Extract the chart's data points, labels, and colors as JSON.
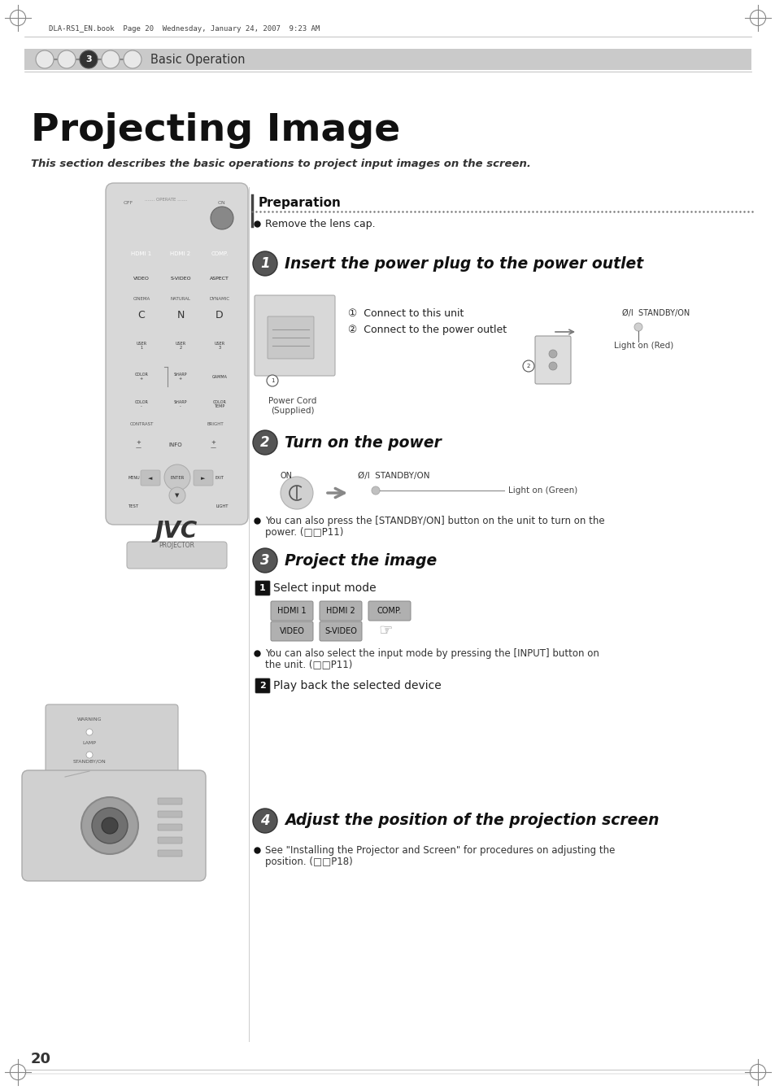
{
  "page_bg": "#ffffff",
  "header_bar_color": "#d0d0d0",
  "header_text": "Basic Operation",
  "print_info": "DLA-RS1_EN.book  Page 20  Wednesday, January 24, 2007  9:23 AM",
  "title": "Projecting Image",
  "subtitle": "This section describes the basic operations to project input images on the screen.",
  "preparation_title": "Preparation",
  "prep_item": "Remove the lens cap.",
  "step1_title": "Insert the power plug to the power outlet",
  "step1_item1": "①  Connect to this unit",
  "step1_item2": "②  Connect to the power outlet",
  "step1_cord_label": "Power Cord\n(Supplied)",
  "step1_standby": "Ø/I  STANDBY/ON",
  "step1_light": "Light on (Red)",
  "step2_title": "Turn on the power",
  "step2_on": "ON",
  "step2_standby": "Ø/I  STANDBY/ON",
  "step2_light": "Light on (Green)",
  "step2_note1": "You can also press the [STANDBY/ON] button on the unit to turn on the",
  "step2_note2": "power. (□□P11)",
  "step3_title": "Project the image",
  "step3_sub1": "Select input mode",
  "step3_btns_row1": [
    "HDMI 1",
    "HDMI 2",
    "COMP."
  ],
  "step3_btns_row2": [
    "VIDEO",
    "S-VIDEO"
  ],
  "step3_note1": "You can also select the input mode by pressing the [INPUT] button on",
  "step3_note2": "the unit. (□□P11)",
  "step3_sub2": "Play back the selected device",
  "step4_title": "Adjust the position of the projection screen",
  "step4_note1": "See \"Installing the Projector and Screen\" for procedures on adjusting the",
  "step4_note2": "position. (□□P18)",
  "page_num": "20",
  "gray_circle_color": "#d8d8d8",
  "dark_circle_color": "#444444",
  "remote_body_color": "#d8d8d8",
  "remote_btn_color": "#b8b8b8",
  "remote_darkbtn_color": "#909090"
}
